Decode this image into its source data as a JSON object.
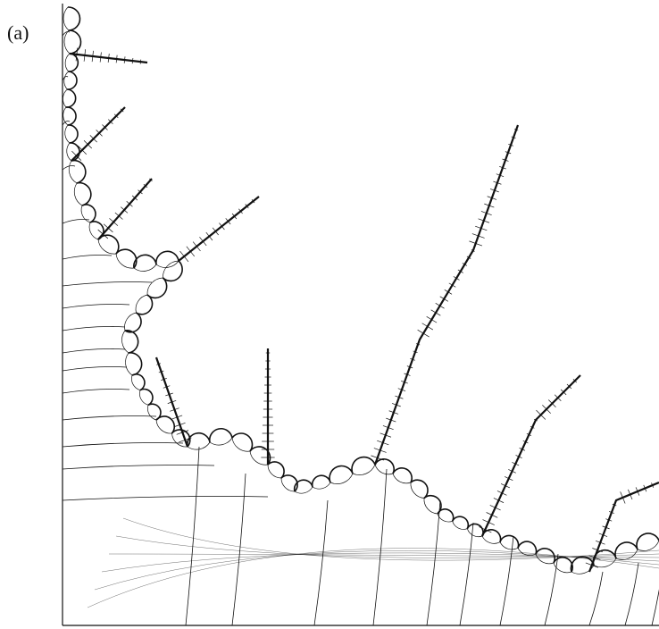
{
  "figure": {
    "label": "(a)"
  }
}
